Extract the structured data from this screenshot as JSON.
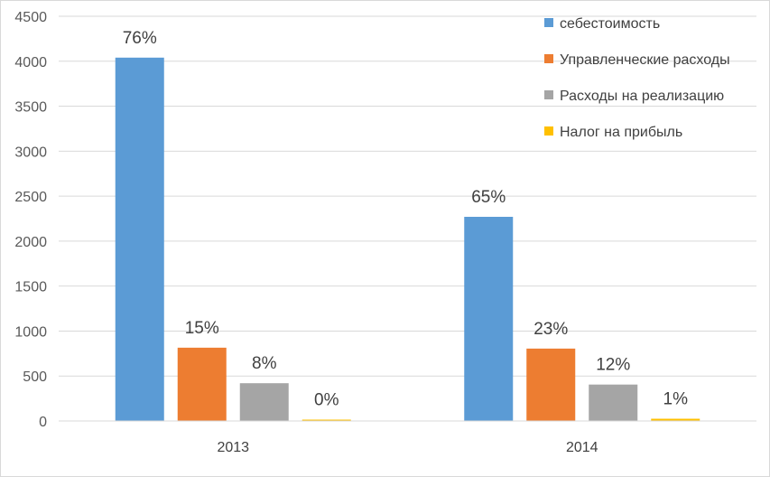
{
  "chart_data": {
    "type": "bar",
    "categories": [
      "2013",
      "2014"
    ],
    "ylim": [
      0,
      4500
    ],
    "yticks": [
      0,
      500,
      1000,
      1500,
      2000,
      2500,
      3000,
      3500,
      4000,
      4500
    ],
    "grid": true,
    "legend_position": "top-right",
    "series": [
      {
        "name": "себестоимость",
        "color": "#5b9bd5",
        "values": [
          4040,
          2270
        ],
        "labels": [
          "76%",
          "65%"
        ]
      },
      {
        "name": "Управленческие расходы",
        "color": "#ed7d31",
        "values": [
          815,
          805
        ],
        "labels": [
          "15%",
          "23%"
        ]
      },
      {
        "name": "Расходы на реализацию",
        "color": "#a5a5a5",
        "values": [
          420,
          405
        ],
        "labels": [
          "8%",
          "12%"
        ]
      },
      {
        "name": "Налог на прибыль",
        "color": "#ffc000",
        "values": [
          15,
          25
        ],
        "labels": [
          "0%",
          "1%"
        ]
      }
    ]
  }
}
